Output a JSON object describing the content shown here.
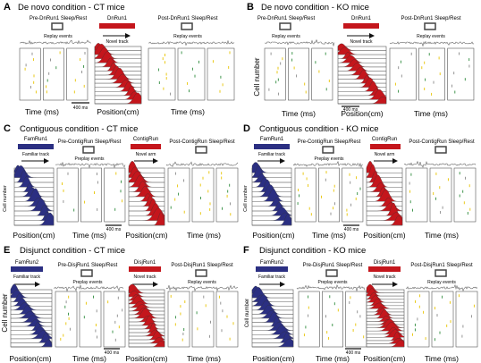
{
  "panels": [
    {
      "letter": "A",
      "title": "De novo condition - CT  mice",
      "pre_label": "Pre-DnRun1 Sleep/Rest",
      "pre_sub": "Replay events",
      "run_label": "DnRun1",
      "run_sub": "Novel track",
      "post_label": "Post-DnRun1 Sleep/Rest",
      "post_sub": "Replay events",
      "scale_label": "400 ms",
      "x_labels": [
        "Time (ms)",
        "Position(cm)",
        "Time (ms)"
      ]
    },
    {
      "letter": "B",
      "title": "De novo condition - KO mice",
      "pre_label": "Pre-DnRun1 Sleep/Rest",
      "pre_sub": "Replay events",
      "run_label": "DnRun1",
      "run_sub": "Novel track",
      "post_label": "Post-DnRun1 Sleep/Rest",
      "post_sub": "Replay events",
      "ylabel": "Cell number",
      "scale_label": "400 ms",
      "x_labels": [
        "Time (ms)",
        "Position(cm)",
        "Time (ms)"
      ]
    },
    {
      "letter": "C",
      "title": "Contiguous condition - CT mice",
      "fam_label": "FamRun1",
      "fam_sub": "Familiar track",
      "pre_label": "Pre-ContigRun Sleep/Rest",
      "pre_sub": "Preplay events",
      "run_label": "ContigRun",
      "run_sub": "Novel arm",
      "post_label": "Post-ContigRun Sleep/Rest",
      "ylabel": "Cell number",
      "scale_label": "400 ms",
      "x_labels": [
        "Position(cm)",
        "Time (ms)",
        "Position(cm)",
        "Time (ms)"
      ]
    },
    {
      "letter": "D",
      "title": "Contiguous condition - KO mice",
      "fam_label": "FamRun1",
      "fam_sub": "Familiar track",
      "pre_label": "Pre-ContigRun Sleep/Rest",
      "pre_sub": "Preplay events",
      "run_label": "ContigRun",
      "run_sub": "Novel arm",
      "post_label": "Post-ContigRun Sleep/Rest",
      "ylabel": "Cell number",
      "scale_label": "400 ms",
      "x_labels": [
        "Position(cm)",
        "Time (ms)",
        "Position(cm)",
        "Time (ms)"
      ]
    },
    {
      "letter": "E",
      "title": "Disjunct condition - CT mice",
      "fam_label": "FamRun2",
      "fam_sub": "Familiar track",
      "pre_label": "Pre-DisjRun1 Sleep/Rest",
      "pre_sub": "Preplay events",
      "run_label": "DisjRun1",
      "run_sub": "Novel track",
      "post_label": "Post-DisjRun1 Sleep/Rest",
      "post_sub": "Replay events",
      "ylabel": "Cell number",
      "scale_label": "400 ms",
      "x_labels": [
        "Position(cm)",
        "Time (ms)",
        "Position(cm)",
        "Time (ms)"
      ]
    },
    {
      "letter": "F",
      "title": "Disjunct condition - KO mice",
      "fam_label": "FamRun2",
      "fam_sub": "Familiar track",
      "pre_label": "Pre-DisjRun1 Sleep/Rest",
      "pre_sub": "Preplay events",
      "run_label": "DisjRun1",
      "run_sub": "Novel track",
      "post_label": "Post-DisjRun1 Sleep/Rest",
      "post_sub": "Replay events",
      "ylabel": "Cell number",
      "scale_label": "400 ms",
      "x_labels": [
        "Position(cm)",
        "Time (ms)",
        "Position(cm)",
        "Time (ms)"
      ]
    }
  ],
  "colors": {
    "novel": "#c4161c",
    "familiar": "#2b2f82",
    "spike_yellow": "#e8c400",
    "spike_green": "#2e8b3c",
    "frame": "#555555"
  }
}
